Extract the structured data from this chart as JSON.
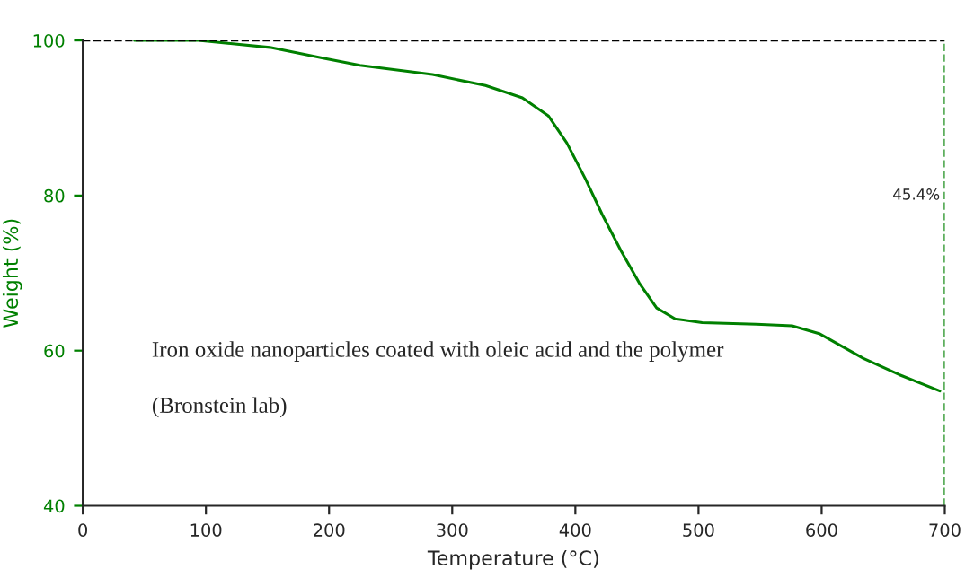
{
  "chart_data": {
    "type": "line",
    "xlabel": "Temperature (°C)",
    "ylabel": "Weight (%)",
    "series": [
      {
        "color": "#008000",
        "x": [
          42,
          94,
          152,
          196,
          225,
          284,
          327,
          357,
          378,
          393,
          408,
          422,
          437,
          452,
          466,
          481,
          503,
          547,
          576,
          598,
          634,
          663,
          696
        ],
        "values": [
          100,
          100,
          99.1,
          97.7,
          96.8,
          95.6,
          94.2,
          92.6,
          90.3,
          86.8,
          82.2,
          77.5,
          72.9,
          68.7,
          65.5,
          64.1,
          63.6,
          63.4,
          63.2,
          62.2,
          59.0,
          56.9,
          54.8
        ]
      }
    ],
    "xlim": [
      0,
      700
    ],
    "xticks": [
      0,
      100,
      200,
      300,
      400,
      500,
      600,
      700
    ],
    "ylim": [
      40,
      100
    ],
    "yticks": [
      40,
      60,
      80,
      100
    ],
    "ref_lines": [
      {
        "axis": "y",
        "value": 100,
        "color": "#000000",
        "line_style": "dashed"
      },
      {
        "axis": "x",
        "value": 700,
        "color": "#008000",
        "line_style": "dashed"
      }
    ],
    "annotations": [
      "Iron oxide nanoparticles coated with oleic acid and the polymer",
      "(Bronstein lab)",
      {
        "text": "45.4%",
        "x": 700,
        "y": 80
      }
    ],
    "grid": false,
    "legend": false,
    "marker": "none",
    "line_style": "solid"
  }
}
